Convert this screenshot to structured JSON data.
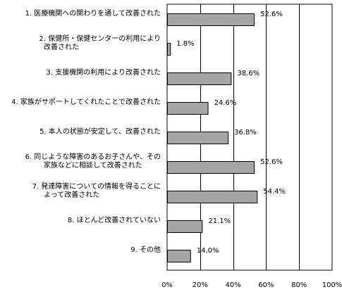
{
  "chart_data": {
    "type": "bar",
    "orientation": "horizontal",
    "categories": [
      [
        "1. 医療機関への関わりを通して改善された"
      ],
      [
        "2. 保健所・保健センターの利用により",
        "改善された"
      ],
      [
        "3. 支援機関の利用により改善された"
      ],
      [
        "4. 家族がサポートしてくれたことで改善された"
      ],
      [
        "5. 本人の状態が安定して、改善された"
      ],
      [
        "6. 同じような障害のあるお子さんや、その",
        "家族などに相談して改善された"
      ],
      [
        "7. 発達障害についての情報を得ることに",
        "よって改善された"
      ],
      [
        "8. ほとんど改善されていない"
      ],
      [
        "9. その他"
      ]
    ],
    "values": [
      52.6,
      1.8,
      38.6,
      24.6,
      36.8,
      52.6,
      54.4,
      21.1,
      14.0
    ],
    "value_labels": [
      "52.6%",
      "1.8%",
      "38.6%",
      "24.6%",
      "36.8%",
      "52.6%",
      "54.4%",
      "21.1%",
      "14.0%"
    ],
    "xlim": [
      0,
      100
    ],
    "ticks": [
      0,
      20,
      40,
      60,
      80,
      100
    ],
    "tick_labels": [
      "0%",
      "20%",
      "40%",
      "60%",
      "80%",
      "100%"
    ],
    "grid": true,
    "bar_color": "#a6a6a6",
    "title": "",
    "xlabel": "",
    "ylabel": ""
  }
}
